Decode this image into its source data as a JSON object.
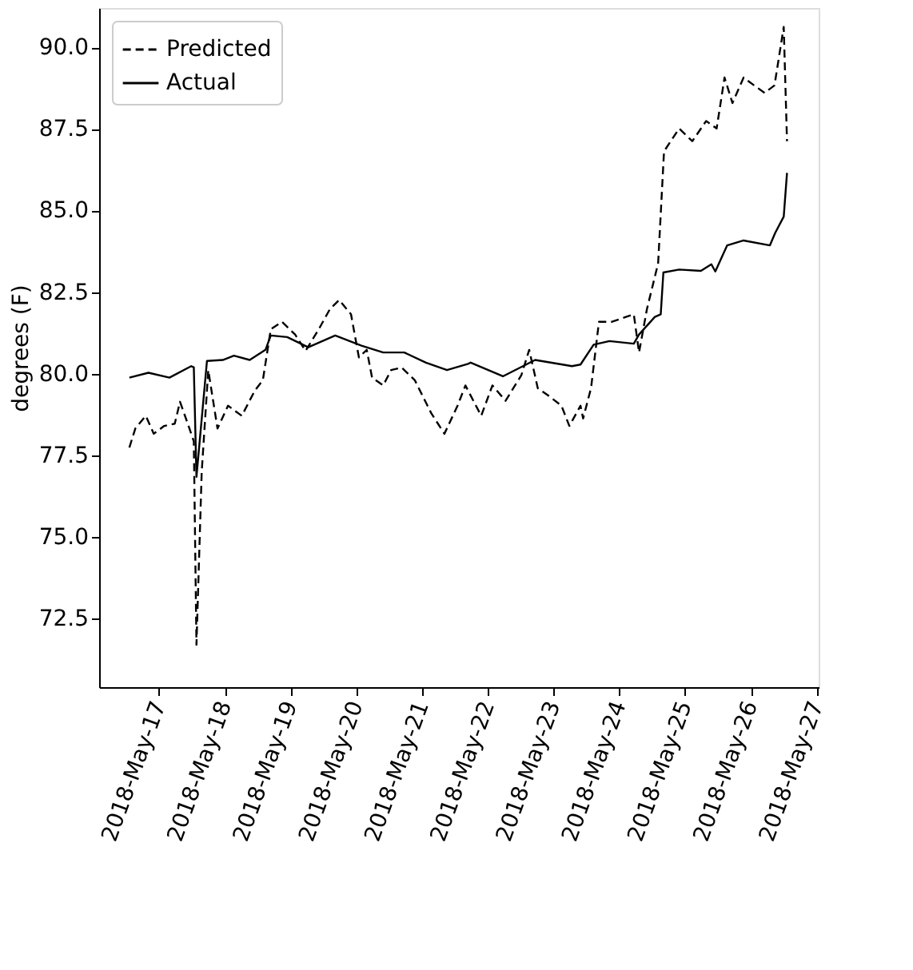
{
  "chart_data": {
    "type": "line",
    "ylabel": "degrees (F)",
    "legend": "top left",
    "grid": false,
    "xlim": [
      "2018-05-16T02:10",
      "2018-05-27T00:45"
    ],
    "ylim": [
      70.4,
      91.2
    ],
    "xticks": [
      {
        "value": "2018-05-17",
        "label": "2018-May-17"
      },
      {
        "value": "2018-05-18",
        "label": "2018-May-18"
      },
      {
        "value": "2018-05-19",
        "label": "2018-May-19"
      },
      {
        "value": "2018-05-20",
        "label": "2018-May-20"
      },
      {
        "value": "2018-05-21",
        "label": "2018-May-21"
      },
      {
        "value": "2018-05-22",
        "label": "2018-May-22"
      },
      {
        "value": "2018-05-23",
        "label": "2018-May-23"
      },
      {
        "value": "2018-05-24",
        "label": "2018-May-24"
      },
      {
        "value": "2018-05-25",
        "label": "2018-May-25"
      },
      {
        "value": "2018-05-26",
        "label": "2018-May-26"
      },
      {
        "value": "2018-05-27",
        "label": "2018-May-27"
      }
    ],
    "yticks": [
      {
        "value": 72.5,
        "label": "72.5"
      },
      {
        "value": 75,
        "label": "75.0"
      },
      {
        "value": 77.5,
        "label": "77.5"
      },
      {
        "value": 80,
        "label": "80.0"
      },
      {
        "value": 82.5,
        "label": "82.5"
      },
      {
        "value": 85,
        "label": "85.0"
      },
      {
        "value": 87.5,
        "label": "87.5"
      },
      {
        "value": 90,
        "label": "90.0"
      }
    ],
    "series": [
      {
        "name": "Predicted",
        "color": "#000000",
        "line_style": "dashed",
        "x": [
          "2018-05-16T13:12",
          "2018-05-16T15:22",
          "2018-05-16T19:12",
          "2018-05-16T22:05",
          "2018-05-17T01:55",
          "2018-05-17T05:46",
          "2018-05-17T07:41",
          "2018-05-17T10:48",
          "2018-05-17T12:43",
          "2018-05-17T13:41",
          "2018-05-17T15:36",
          "2018-05-17T18:00",
          "2018-05-17T21:22",
          "2018-05-18T01:12",
          "2018-05-18T06:14",
          "2018-05-18T11:02",
          "2018-05-18T13:55",
          "2018-05-18T16:48",
          "2018-05-18T20:53",
          "2018-05-19T01:41",
          "2018-05-19T05:31",
          "2018-05-19T10:19",
          "2018-05-19T14:24",
          "2018-05-19T17:46",
          "2018-05-19T22:05",
          "2018-05-20T00:58",
          "2018-05-20T03:50",
          "2018-05-20T05:46",
          "2018-05-20T09:50",
          "2018-05-20T12:43",
          "2018-05-20T16:34",
          "2018-05-20T21:22",
          "2018-05-21T03:22",
          "2018-05-21T08:10",
          "2018-05-21T12:58",
          "2018-05-21T15:50",
          "2018-05-21T21:36",
          "2018-05-22T01:41",
          "2018-05-22T06:29",
          "2018-05-22T12:14",
          "2018-05-22T15:07",
          "2018-05-22T18:14",
          "2018-05-22T22:05",
          "2018-05-23T02:53",
          "2018-05-23T05:46",
          "2018-05-23T09:50",
          "2018-05-23T10:48",
          "2018-05-23T13:41",
          "2018-05-23T16:34",
          "2018-05-23T21:22",
          "2018-05-24T02:24",
          "2018-05-24T05:17",
          "2018-05-24T07:12",
          "2018-05-24T10:05",
          "2018-05-24T14:10",
          "2018-05-24T16:19",
          "2018-05-24T21:50",
          "2018-05-25T02:38",
          "2018-05-25T07:41",
          "2018-05-25T11:31",
          "2018-05-25T14:24",
          "2018-05-25T17:17",
          "2018-05-25T21:22",
          "2018-05-26T01:12",
          "2018-05-26T05:02",
          "2018-05-26T08:38",
          "2018-05-26T12:00",
          "2018-05-26T13:12"
        ],
        "values": [
          77.74,
          78.32,
          78.71,
          78.16,
          78.4,
          78.47,
          79.14,
          78.4,
          77.93,
          71.7,
          76.99,
          80.11,
          78.32,
          79.02,
          78.71,
          79.49,
          79.8,
          81.36,
          81.59,
          81.2,
          80.7,
          81.36,
          81.98,
          82.26,
          81.82,
          80.5,
          80.73,
          79.88,
          79.64,
          80.11,
          80.19,
          79.8,
          78.79,
          78.16,
          79.02,
          79.64,
          78.71,
          79.64,
          79.17,
          79.95,
          80.73,
          79.56,
          79.33,
          79.02,
          78.4,
          79.02,
          78.63,
          79.56,
          81.59,
          81.59,
          81.74,
          81.82,
          80.65,
          81.98,
          83.38,
          86.81,
          87.51,
          87.12,
          87.74,
          87.51,
          89.07,
          88.29,
          89.07,
          88.83,
          88.6,
          88.83,
          90.62,
          87.12
        ]
      },
      {
        "name": "Actual",
        "color": "#000000",
        "line_style": "solid",
        "x": [
          "2018-05-16T13:12",
          "2018-05-16T20:10",
          "2018-05-17T03:50",
          "2018-05-17T11:46",
          "2018-05-17T12:43",
          "2018-05-17T13:41",
          "2018-05-17T17:31",
          "2018-05-17T23:17",
          "2018-05-18T03:22",
          "2018-05-18T09:07",
          "2018-05-18T14:53",
          "2018-05-18T16:48",
          "2018-05-18T22:48",
          "2018-05-19T06:29",
          "2018-05-19T16:19",
          "2018-05-20T01:55",
          "2018-05-20T09:50",
          "2018-05-20T17:31",
          "2018-05-21T01:26",
          "2018-05-21T09:07",
          "2018-05-21T16:48",
          "2018-05-21T17:46",
          "2018-05-22T05:31",
          "2018-05-22T17:17",
          "2018-05-23T06:43",
          "2018-05-23T09:50",
          "2018-05-23T14:38",
          "2018-05-23T20:24",
          "2018-05-24T05:17",
          "2018-05-24T07:12",
          "2018-05-24T12:58",
          "2018-05-24T15:07",
          "2018-05-24T16:05",
          "2018-05-24T21:50",
          "2018-05-25T05:46",
          "2018-05-25T09:36",
          "2018-05-25T11:02",
          "2018-05-25T15:22",
          "2018-05-25T21:22",
          "2018-05-26T06:58",
          "2018-05-26T08:53",
          "2018-05-26T12:00",
          "2018-05-26T13:12"
        ],
        "values": [
          79.88,
          80.03,
          79.88,
          80.23,
          80.2,
          76.84,
          80.39,
          80.42,
          80.55,
          80.42,
          80.73,
          81.17,
          81.12,
          80.81,
          81.17,
          80.86,
          80.65,
          80.65,
          80.34,
          80.11,
          80.3,
          80.34,
          79.92,
          80.42,
          80.23,
          80.28,
          80.89,
          81.0,
          80.92,
          81.2,
          81.74,
          81.82,
          83.1,
          83.19,
          83.15,
          83.35,
          83.13,
          83.93,
          84.08,
          83.93,
          84.31,
          84.81,
          86.15
        ]
      }
    ]
  }
}
